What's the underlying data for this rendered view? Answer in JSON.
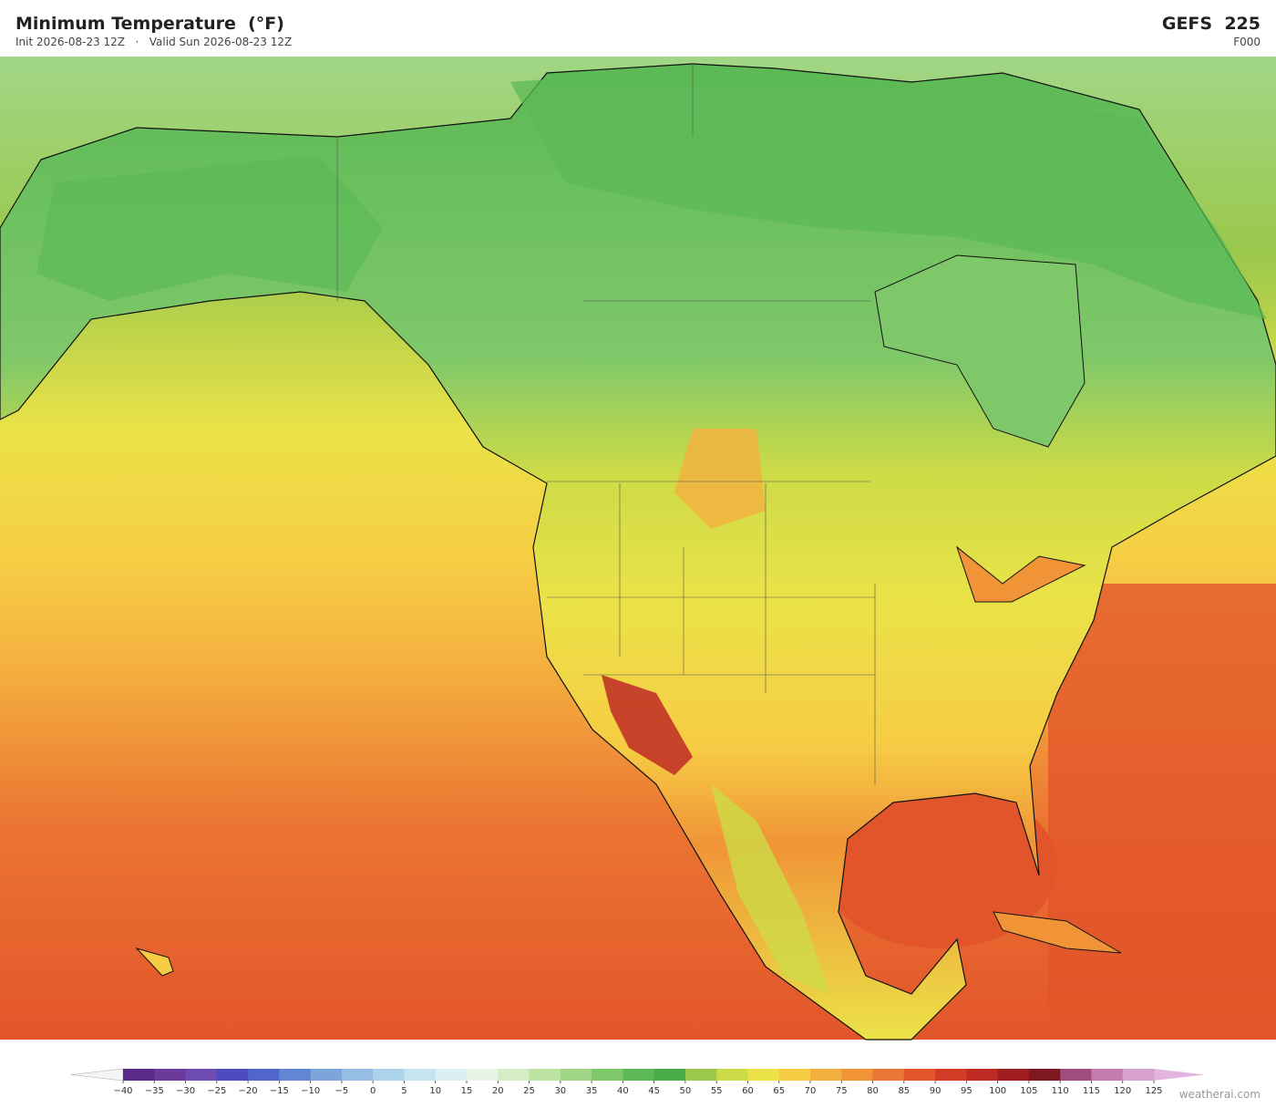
{
  "header": {
    "title": "Minimum Temperature  (°F)",
    "init": "Init 2026-08-23 12Z",
    "separator": "·",
    "valid": "Valid Sun 2026-08-23 12Z",
    "model": "GEFS  225",
    "forecast_hour": "F000"
  },
  "colorbar": {
    "ticks": [
      {
        "value": -40,
        "label": "−40"
      },
      {
        "value": -35,
        "label": "−35"
      },
      {
        "value": -30,
        "label": "−30"
      },
      {
        "value": -25,
        "label": "−25"
      },
      {
        "value": -20,
        "label": "−20"
      },
      {
        "value": -15,
        "label": "−15"
      },
      {
        "value": -10,
        "label": "−10"
      },
      {
        "value": -5,
        "label": "−5"
      },
      0,
      5,
      10,
      15,
      20,
      25,
      30,
      35,
      40,
      45,
      50,
      55,
      60,
      65,
      70,
      75,
      80,
      85,
      90,
      95,
      100,
      105,
      110,
      115,
      120,
      125
    ],
    "colors": [
      "#5a2a8a",
      "#6b3a9b",
      "#6e4bb0",
      "#4c4cc0",
      "#5066cc",
      "#6286d4",
      "#7ea4dc",
      "#96bee4",
      "#add2ec",
      "#c6e3f0",
      "#dcf0f3",
      "#e8f5e6",
      "#d4edc4",
      "#bde3a2",
      "#a1d686",
      "#7fc86a",
      "#5cb955",
      "#4aac48",
      "#9ac84c",
      "#cddb46",
      "#ebe248",
      "#f6cc44",
      "#f4b03f",
      "#f09437",
      "#eb7532",
      "#e2552b",
      "#d33d27",
      "#be2a24",
      "#a01e22",
      "#7d1720",
      "#9f4c7f",
      "#c47bb0",
      "#d8a2d0"
    ],
    "under_color": "#f4f4f4",
    "over_color": "#e3b5de"
  },
  "watermark": "weatherai.com"
}
